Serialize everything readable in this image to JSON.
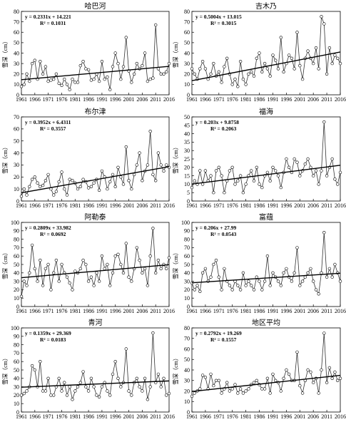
{
  "chart_data": [
    {
      "type": "line",
      "title": "哈巴河",
      "ylabel": "雪深（cm）",
      "ylim": [
        0,
        80
      ],
      "yticks": [
        0,
        10,
        20,
        30,
        40,
        50,
        60,
        70,
        80
      ],
      "xlim": [
        1961,
        2016
      ],
      "xticks": [
        1961,
        1966,
        1971,
        1976,
        1981,
        1986,
        1991,
        1996,
        2001,
        2006,
        2011,
        2016
      ],
      "grid": false,
      "x": [
        1961,
        1962,
        1963,
        1964,
        1965,
        1966,
        1967,
        1968,
        1969,
        1970,
        1971,
        1972,
        1973,
        1974,
        1975,
        1976,
        1977,
        1978,
        1979,
        1980,
        1981,
        1982,
        1983,
        1984,
        1985,
        1986,
        1987,
        1988,
        1989,
        1990,
        1991,
        1992,
        1993,
        1994,
        1995,
        1996,
        1997,
        1998,
        1999,
        2000,
        2001,
        2002,
        2003,
        2004,
        2005,
        2006,
        2007,
        2008,
        2009,
        2010,
        2011,
        2012,
        2013,
        2014,
        2015,
        2016
      ],
      "values": [
        8,
        10,
        20,
        13,
        30,
        33,
        15,
        32,
        20,
        27,
        13,
        14,
        15,
        20,
        11,
        9,
        15,
        10,
        5,
        15,
        12,
        12,
        28,
        32,
        25,
        24,
        14,
        15,
        20,
        13,
        32,
        15,
        17,
        5,
        27,
        40,
        30,
        15,
        27,
        55,
        23,
        12,
        20,
        30,
        25,
        28,
        40,
        13,
        15,
        16,
        67,
        25,
        20,
        20,
        22,
        30
      ],
      "trend": {
        "slope": 0.2331,
        "intercept": 14.221
      },
      "equation": "y = 0.2331x + 14.221",
      "r2": "R² = 0.1031"
    },
    {
      "type": "line",
      "title": "吉木乃",
      "ylabel": "雪深（cm）",
      "ylim": [
        0,
        80
      ],
      "yticks": [
        0,
        10,
        20,
        30,
        40,
        50,
        60,
        70,
        80
      ],
      "xlim": [
        1961,
        2016
      ],
      "xticks": [
        1961,
        1966,
        1971,
        1976,
        1981,
        1986,
        1991,
        1996,
        2001,
        2006,
        2011,
        2016
      ],
      "grid": false,
      "x": [
        1961,
        1962,
        1963,
        1964,
        1965,
        1966,
        1967,
        1968,
        1969,
        1970,
        1971,
        1972,
        1973,
        1974,
        1975,
        1976,
        1977,
        1978,
        1979,
        1980,
        1981,
        1982,
        1983,
        1984,
        1985,
        1986,
        1987,
        1988,
        1989,
        1990,
        1991,
        1992,
        1993,
        1994,
        1995,
        1996,
        1997,
        1998,
        1999,
        2000,
        2001,
        2002,
        2003,
        2004,
        2005,
        2006,
        2007,
        2008,
        2009,
        2010,
        2011,
        2012,
        2013,
        2014,
        2015,
        2016
      ],
      "values": [
        25,
        20,
        15,
        25,
        32,
        25,
        15,
        20,
        30,
        18,
        22,
        12,
        27,
        35,
        20,
        10,
        15,
        8,
        32,
        15,
        10,
        20,
        22,
        18,
        35,
        40,
        22,
        30,
        25,
        18,
        38,
        33,
        25,
        55,
        22,
        30,
        38,
        35,
        25,
        60,
        28,
        15,
        35,
        42,
        35,
        30,
        45,
        25,
        75,
        68,
        20,
        45,
        30,
        38,
        35,
        30
      ],
      "trend": {
        "slope": 0.5004,
        "intercept": 13.015
      },
      "equation": "y = 0.5004x + 13.015",
      "r2": "R² = 0.3015"
    },
    {
      "type": "line",
      "title": "布尔津",
      "ylabel": "雪深（cm）",
      "ylim": [
        0,
        70
      ],
      "yticks": [
        0,
        10,
        20,
        30,
        40,
        50,
        60,
        70
      ],
      "xlim": [
        1961,
        2016
      ],
      "xticks": [
        1961,
        1966,
        1971,
        1976,
        1981,
        1986,
        1991,
        1996,
        2001,
        2006,
        2011,
        2016
      ],
      "grid": false,
      "x": [
        1961,
        1962,
        1963,
        1964,
        1965,
        1966,
        1967,
        1968,
        1969,
        1970,
        1971,
        1972,
        1973,
        1974,
        1975,
        1976,
        1977,
        1978,
        1979,
        1980,
        1981,
        1982,
        1983,
        1984,
        1985,
        1986,
        1987,
        1988,
        1989,
        1990,
        1991,
        1992,
        1993,
        1994,
        1995,
        1996,
        1997,
        1998,
        1999,
        2000,
        2001,
        2002,
        2003,
        2004,
        2005,
        2006,
        2007,
        2008,
        2009,
        2010,
        2011,
        2012,
        2013,
        2014,
        2015,
        2016
      ],
      "values": [
        4,
        10,
        5,
        12,
        18,
        20,
        15,
        12,
        13,
        17,
        22,
        10,
        5,
        8,
        16,
        24,
        10,
        5,
        18,
        17,
        15,
        10,
        12,
        18,
        16,
        11,
        12,
        15,
        18,
        9,
        25,
        20,
        10,
        16,
        22,
        12,
        28,
        20,
        14,
        45,
        17,
        10,
        22,
        30,
        40,
        17,
        25,
        30,
        58,
        22,
        17,
        40,
        30,
        25,
        30,
        28
      ],
      "trend": {
        "slope": 0.3952,
        "intercept": 6.4311
      },
      "equation": "y = 0.3952x + 6.4311",
      "r2": "R² = 0.3557"
    },
    {
      "type": "line",
      "title": "福海",
      "ylabel": "雪深（cm）",
      "ylim": [
        0,
        50
      ],
      "yticks": [
        0,
        5,
        10,
        15,
        20,
        25,
        30,
        35,
        40,
        45,
        50
      ],
      "xlim": [
        1961,
        2016
      ],
      "xticks": [
        1961,
        1966,
        1971,
        1976,
        1981,
        1986,
        1991,
        1996,
        2001,
        2006,
        2011,
        2016
      ],
      "grid": false,
      "x": [
        1961,
        1962,
        1963,
        1964,
        1965,
        1966,
        1967,
        1968,
        1969,
        1970,
        1971,
        1972,
        1973,
        1974,
        1975,
        1976,
        1977,
        1978,
        1979,
        1980,
        1981,
        1982,
        1983,
        1984,
        1985,
        1986,
        1987,
        1988,
        1989,
        1990,
        1991,
        1992,
        1993,
        1994,
        1995,
        1996,
        1997,
        1998,
        1999,
        2000,
        2001,
        2002,
        2003,
        2004,
        2005,
        2006,
        2007,
        2008,
        2009,
        2010,
        2011,
        2012,
        2013,
        2014,
        2015,
        2016
      ],
      "values": [
        8,
        12,
        10,
        18,
        10,
        18,
        12,
        15,
        5,
        18,
        20,
        15,
        5,
        12,
        18,
        20,
        10,
        12,
        15,
        5,
        10,
        15,
        18,
        12,
        20,
        10,
        8,
        15,
        17,
        12,
        20,
        18,
        15,
        8,
        17,
        25,
        20,
        17,
        25,
        23,
        15,
        18,
        22,
        25,
        20,
        15,
        18,
        10,
        18,
        47,
        15,
        20,
        25,
        13,
        10,
        17
      ],
      "trend": {
        "slope": 0.203,
        "intercept": 9.8758
      },
      "equation": "y = 0.203x + 9.8758",
      "r2": "R² = 0.2063"
    },
    {
      "type": "line",
      "title": "阿勒泰",
      "ylabel": "雪深（cm）",
      "ylim": [
        0,
        100
      ],
      "yticks": [
        0,
        10,
        20,
        30,
        40,
        50,
        60,
        70,
        80,
        90,
        100
      ],
      "xlim": [
        1961,
        2016
      ],
      "xticks": [
        1961,
        1966,
        1971,
        1976,
        1981,
        1986,
        1991,
        1996,
        2001,
        2006,
        2011,
        2016
      ],
      "grid": false,
      "x": [
        1961,
        1962,
        1963,
        1964,
        1965,
        1966,
        1967,
        1968,
        1969,
        1970,
        1971,
        1972,
        1973,
        1974,
        1975,
        1976,
        1977,
        1978,
        1979,
        1980,
        1981,
        1982,
        1983,
        1984,
        1985,
        1986,
        1987,
        1988,
        1989,
        1990,
        1991,
        1992,
        1993,
        1994,
        1995,
        1996,
        1997,
        1998,
        1999,
        2000,
        2001,
        2002,
        2003,
        2004,
        2005,
        2006,
        2007,
        2008,
        2009,
        2010,
        2011,
        2012,
        2013,
        2014,
        2015,
        2016
      ],
      "values": [
        12,
        30,
        25,
        40,
        73,
        45,
        30,
        55,
        25,
        45,
        50,
        20,
        40,
        55,
        30,
        50,
        40,
        35,
        28,
        20,
        42,
        40,
        45,
        55,
        50,
        30,
        35,
        25,
        40,
        30,
        60,
        45,
        50,
        25,
        40,
        60,
        62,
        50,
        40,
        75,
        35,
        30,
        45,
        70,
        55,
        40,
        45,
        25,
        60,
        93,
        40,
        55,
        45,
        50,
        45,
        58
      ],
      "trend": {
        "slope": 0.2809,
        "intercept": 33.982
      },
      "equation": "y = 0.2809x + 33.982",
      "r2": "R² = 0.0692"
    },
    {
      "type": "line",
      "title": "富蕴",
      "ylabel": "雪深（cm）",
      "ylim": [
        0,
        100
      ],
      "yticks": [
        0,
        10,
        20,
        30,
        40,
        50,
        60,
        70,
        80,
        90,
        100
      ],
      "xlim": [
        1961,
        2016
      ],
      "xticks": [
        1961,
        1966,
        1971,
        1976,
        1981,
        1986,
        1991,
        1996,
        2001,
        2006,
        2011,
        2016
      ],
      "grid": false,
      "x": [
        1961,
        1962,
        1963,
        1964,
        1965,
        1966,
        1967,
        1968,
        1969,
        1970,
        1971,
        1972,
        1973,
        1974,
        1975,
        1976,
        1977,
        1978,
        1979,
        1980,
        1981,
        1982,
        1983,
        1984,
        1985,
        1986,
        1987,
        1988,
        1989,
        1990,
        1991,
        1992,
        1993,
        1994,
        1995,
        1996,
        1997,
        1998,
        1999,
        2000,
        2001,
        2002,
        2003,
        2004,
        2005,
        2006,
        2007,
        2008,
        2009,
        2010,
        2011,
        2012,
        2013,
        2014,
        2015,
        2016
      ],
      "values": [
        28,
        20,
        25,
        18,
        40,
        45,
        30,
        35,
        50,
        55,
        35,
        20,
        45,
        30,
        25,
        20,
        30,
        25,
        20,
        40,
        25,
        30,
        25,
        20,
        35,
        30,
        20,
        30,
        60,
        25,
        40,
        35,
        30,
        25,
        40,
        45,
        35,
        30,
        40,
        70,
        25,
        30,
        35,
        40,
        45,
        30,
        20,
        15,
        40,
        88,
        35,
        45,
        35,
        50,
        40,
        30
      ],
      "trend": {
        "slope": 0.206,
        "intercept": 27.99
      },
      "equation": "y = 0.206x + 27.99",
      "r2": "R² = 0.0543"
    },
    {
      "type": "line",
      "title": "青河",
      "ylabel": "雪深（cm）",
      "ylim": [
        0,
        100
      ],
      "yticks": [
        0,
        10,
        20,
        30,
        40,
        50,
        60,
        70,
        80,
        90,
        100
      ],
      "xlim": [
        1961,
        2016
      ],
      "xticks": [
        1961,
        1966,
        1971,
        1976,
        1981,
        1986,
        1991,
        1996,
        2001,
        2006,
        2011,
        2016
      ],
      "grid": false,
      "x": [
        1961,
        1962,
        1963,
        1964,
        1965,
        1966,
        1967,
        1968,
        1969,
        1970,
        1971,
        1972,
        1973,
        1974,
        1975,
        1976,
        1977,
        1978,
        1979,
        1980,
        1981,
        1982,
        1983,
        1984,
        1985,
        1986,
        1987,
        1988,
        1989,
        1990,
        1991,
        1992,
        1993,
        1994,
        1995,
        1996,
        1997,
        1998,
        1999,
        2000,
        2001,
        2002,
        2003,
        2004,
        2005,
        2006,
        2007,
        2008,
        2009,
        2010,
        2011,
        2012,
        2013,
        2014,
        2015,
        2016
      ],
      "values": [
        20,
        22,
        25,
        30,
        55,
        50,
        30,
        60,
        25,
        25,
        40,
        20,
        20,
        30,
        40,
        25,
        35,
        20,
        30,
        15,
        25,
        30,
        35,
        48,
        30,
        25,
        40,
        30,
        20,
        18,
        30,
        35,
        25,
        20,
        45,
        60,
        40,
        30,
        35,
        75,
        25,
        20,
        35,
        40,
        30,
        25,
        40,
        15,
        30,
        94,
        35,
        45,
        30,
        40,
        20,
        22
      ],
      "trend": {
        "slope": 0.1359,
        "intercept": 29.369
      },
      "equation": "y = 0.1359x + 29.369",
      "r2": "R² = 0.0183"
    },
    {
      "type": "line",
      "title": "地区平均",
      "ylabel": "雪深（cm）",
      "ylim": [
        0,
        80
      ],
      "yticks": [
        0,
        10,
        20,
        30,
        40,
        50,
        60,
        70,
        80
      ],
      "xlim": [
        1961,
        2016
      ],
      "xticks": [
        1961,
        1966,
        1971,
        1976,
        1981,
        1986,
        1991,
        1996,
        2001,
        2006,
        2011,
        2016
      ],
      "grid": false,
      "x": [
        1961,
        1962,
        1963,
        1964,
        1965,
        1966,
        1967,
        1968,
        1969,
        1970,
        1971,
        1972,
        1973,
        1974,
        1975,
        1976,
        1977,
        1978,
        1979,
        1980,
        1981,
        1982,
        1983,
        1984,
        1985,
        1986,
        1987,
        1988,
        1989,
        1990,
        1991,
        1992,
        1993,
        1994,
        1995,
        1996,
        1997,
        1998,
        1999,
        2000,
        2001,
        2002,
        2003,
        2004,
        2005,
        2006,
        2007,
        2008,
        2009,
        2010,
        2011,
        2012,
        2013,
        2014,
        2015,
        2016
      ],
      "values": [
        15,
        18,
        20,
        22,
        35,
        33,
        22,
        36,
        25,
        30,
        30,
        18,
        22,
        28,
        20,
        22,
        26,
        18,
        22,
        18,
        20,
        22,
        26,
        28,
        30,
        26,
        22,
        22,
        32,
        18,
        36,
        30,
        28,
        20,
        32,
        40,
        36,
        30,
        30,
        57,
        25,
        18,
        30,
        40,
        38,
        28,
        32,
        18,
        40,
        75,
        28,
        42,
        32,
        38,
        30,
        32
      ],
      "trend": {
        "slope": 0.2792,
        "intercept": 19.269
      },
      "equation": "y = 0.2792x + 19.269",
      "r2": "R² = 0.1557"
    }
  ]
}
